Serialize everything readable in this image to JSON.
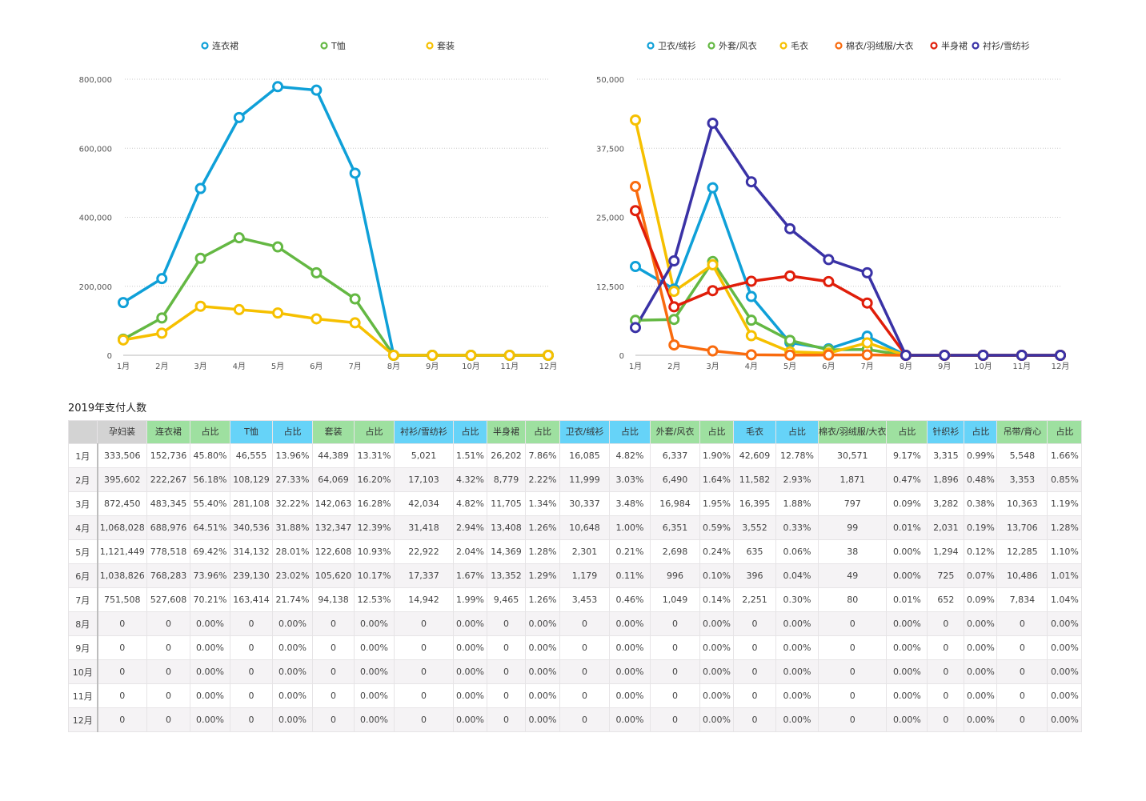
{
  "chart_data": [
    {
      "type": "line",
      "title": "",
      "xlabel": "",
      "ylabel": "",
      "x": [
        "1月",
        "2月",
        "3月",
        "4月",
        "5月",
        "6月",
        "7月",
        "8月",
        "9月",
        "10月",
        "11月",
        "12月"
      ],
      "ylim": [
        0,
        800000
      ],
      "yticks": [
        "0",
        "200,000",
        "400,000",
        "600,000",
        "800,000"
      ],
      "ytick_values": [
        0,
        200000,
        400000,
        600000,
        800000
      ],
      "grid": true,
      "legend_position": "top",
      "series": [
        {
          "name": "连衣裙",
          "color": "#0fa0d8",
          "values": [
            152736,
            222267,
            483345,
            688976,
            778518,
            768283,
            527608,
            0,
            0,
            0,
            0,
            0
          ]
        },
        {
          "name": "T恤",
          "color": "#64b843",
          "values": [
            46555,
            108129,
            281108,
            340536,
            314132,
            239130,
            163414,
            0,
            0,
            0,
            0,
            0
          ]
        },
        {
          "name": "套装",
          "color": "#f6c000",
          "values": [
            44389,
            64069,
            142063,
            132347,
            122608,
            105620,
            94138,
            0,
            0,
            0,
            0,
            0
          ]
        }
      ]
    },
    {
      "type": "line",
      "title": "",
      "xlabel": "",
      "ylabel": "",
      "x": [
        "1月",
        "2月",
        "3月",
        "4月",
        "5月",
        "6月",
        "7月",
        "8月",
        "9月",
        "10月",
        "11月",
        "12月"
      ],
      "ylim": [
        0,
        50000
      ],
      "yticks": [
        "0",
        "12,500",
        "25,000",
        "37,500",
        "50,000"
      ],
      "ytick_values": [
        0,
        12500,
        25000,
        37500,
        50000
      ],
      "grid": true,
      "legend_position": "top",
      "series": [
        {
          "name": "卫衣/绒衫",
          "color": "#0fa0d8",
          "values": [
            16085,
            11999,
            30337,
            10648,
            2301,
            1179,
            3453,
            0,
            0,
            0,
            0,
            0
          ]
        },
        {
          "name": "外套/风衣",
          "color": "#64b843",
          "values": [
            6337,
            6490,
            16984,
            6351,
            2698,
            996,
            1049,
            0,
            0,
            0,
            0,
            0
          ]
        },
        {
          "name": "毛衣",
          "color": "#f6c000",
          "values": [
            42609,
            11582,
            16395,
            3552,
            635,
            396,
            2251,
            0,
            0,
            0,
            0,
            0
          ]
        },
        {
          "name": "棉衣/羽绒服/大衣",
          "color": "#f96b0e",
          "values": [
            30571,
            1871,
            797,
            99,
            38,
            49,
            80,
            0,
            0,
            0,
            0,
            0
          ]
        },
        {
          "name": "半身裙",
          "color": "#e01e0a",
          "values": [
            26202,
            8779,
            11705,
            13408,
            14369,
            13352,
            9465,
            0,
            0,
            0,
            0,
            0
          ]
        },
        {
          "name": "衬衫/雪纺衫",
          "color": "#3a32a6",
          "values": [
            5021,
            17103,
            42034,
            31418,
            22922,
            17337,
            14942,
            0,
            0,
            0,
            0,
            0
          ]
        }
      ]
    }
  ],
  "table": {
    "title": "2019年支付人数",
    "headers": [
      {
        "label": "",
        "style": "gray"
      },
      {
        "label": "孕妇装",
        "style": "gray"
      },
      {
        "label": "连衣裙",
        "style": "green"
      },
      {
        "label": "占比",
        "style": "green"
      },
      {
        "label": "T恤",
        "style": "blue"
      },
      {
        "label": "占比",
        "style": "blue"
      },
      {
        "label": "套装",
        "style": "green"
      },
      {
        "label": "占比",
        "style": "green"
      },
      {
        "label": "衬衫/雪纺衫",
        "style": "blue"
      },
      {
        "label": "占比",
        "style": "blue"
      },
      {
        "label": "半身裙",
        "style": "green"
      },
      {
        "label": "占比",
        "style": "green"
      },
      {
        "label": "卫衣/绒衫",
        "style": "blue"
      },
      {
        "label": "占比",
        "style": "blue"
      },
      {
        "label": "外套/风衣",
        "style": "green"
      },
      {
        "label": "占比",
        "style": "green"
      },
      {
        "label": "毛衣",
        "style": "blue"
      },
      {
        "label": "占比",
        "style": "blue"
      },
      {
        "label": "棉衣/羽绒服/大衣",
        "style": "green"
      },
      {
        "label": "占比",
        "style": "green"
      },
      {
        "label": "针织衫",
        "style": "blue"
      },
      {
        "label": "占比",
        "style": "blue"
      },
      {
        "label": "吊带/背心",
        "style": "green"
      },
      {
        "label": "占比",
        "style": "green"
      }
    ],
    "rows": [
      [
        "1月",
        "333,506",
        "152,736",
        "45.80%",
        "46,555",
        "13.96%",
        "44,389",
        "13.31%",
        "5,021",
        "1.51%",
        "26,202",
        "7.86%",
        "16,085",
        "4.82%",
        "6,337",
        "1.90%",
        "42,609",
        "12.78%",
        "30,571",
        "9.17%",
        "3,315",
        "0.99%",
        "5,548",
        "1.66%"
      ],
      [
        "2月",
        "395,602",
        "222,267",
        "56.18%",
        "108,129",
        "27.33%",
        "64,069",
        "16.20%",
        "17,103",
        "4.32%",
        "8,779",
        "2.22%",
        "11,999",
        "3.03%",
        "6,490",
        "1.64%",
        "11,582",
        "2.93%",
        "1,871",
        "0.47%",
        "1,896",
        "0.48%",
        "3,353",
        "0.85%"
      ],
      [
        "3月",
        "872,450",
        "483,345",
        "55.40%",
        "281,108",
        "32.22%",
        "142,063",
        "16.28%",
        "42,034",
        "4.82%",
        "11,705",
        "1.34%",
        "30,337",
        "3.48%",
        "16,984",
        "1.95%",
        "16,395",
        "1.88%",
        "797",
        "0.09%",
        "3,282",
        "0.38%",
        "10,363",
        "1.19%"
      ],
      [
        "4月",
        "1,068,028",
        "688,976",
        "64.51%",
        "340,536",
        "31.88%",
        "132,347",
        "12.39%",
        "31,418",
        "2.94%",
        "13,408",
        "1.26%",
        "10,648",
        "1.00%",
        "6,351",
        "0.59%",
        "3,552",
        "0.33%",
        "99",
        "0.01%",
        "2,031",
        "0.19%",
        "13,706",
        "1.28%"
      ],
      [
        "5月",
        "1,121,449",
        "778,518",
        "69.42%",
        "314,132",
        "28.01%",
        "122,608",
        "10.93%",
        "22,922",
        "2.04%",
        "14,369",
        "1.28%",
        "2,301",
        "0.21%",
        "2,698",
        "0.24%",
        "635",
        "0.06%",
        "38",
        "0.00%",
        "1,294",
        "0.12%",
        "12,285",
        "1.10%"
      ],
      [
        "6月",
        "1,038,826",
        "768,283",
        "73.96%",
        "239,130",
        "23.02%",
        "105,620",
        "10.17%",
        "17,337",
        "1.67%",
        "13,352",
        "1.29%",
        "1,179",
        "0.11%",
        "996",
        "0.10%",
        "396",
        "0.04%",
        "49",
        "0.00%",
        "725",
        "0.07%",
        "10,486",
        "1.01%"
      ],
      [
        "7月",
        "751,508",
        "527,608",
        "70.21%",
        "163,414",
        "21.74%",
        "94,138",
        "12.53%",
        "14,942",
        "1.99%",
        "9,465",
        "1.26%",
        "3,453",
        "0.46%",
        "1,049",
        "0.14%",
        "2,251",
        "0.30%",
        "80",
        "0.01%",
        "652",
        "0.09%",
        "7,834",
        "1.04%"
      ],
      [
        "8月",
        "0",
        "0",
        "0.00%",
        "0",
        "0.00%",
        "0",
        "0.00%",
        "0",
        "0.00%",
        "0",
        "0.00%",
        "0",
        "0.00%",
        "0",
        "0.00%",
        "0",
        "0.00%",
        "0",
        "0.00%",
        "0",
        "0.00%",
        "0",
        "0.00%"
      ],
      [
        "9月",
        "0",
        "0",
        "0.00%",
        "0",
        "0.00%",
        "0",
        "0.00%",
        "0",
        "0.00%",
        "0",
        "0.00%",
        "0",
        "0.00%",
        "0",
        "0.00%",
        "0",
        "0.00%",
        "0",
        "0.00%",
        "0",
        "0.00%",
        "0",
        "0.00%"
      ],
      [
        "10月",
        "0",
        "0",
        "0.00%",
        "0",
        "0.00%",
        "0",
        "0.00%",
        "0",
        "0.00%",
        "0",
        "0.00%",
        "0",
        "0.00%",
        "0",
        "0.00%",
        "0",
        "0.00%",
        "0",
        "0.00%",
        "0",
        "0.00%",
        "0",
        "0.00%"
      ],
      [
        "11月",
        "0",
        "0",
        "0.00%",
        "0",
        "0.00%",
        "0",
        "0.00%",
        "0",
        "0.00%",
        "0",
        "0.00%",
        "0",
        "0.00%",
        "0",
        "0.00%",
        "0",
        "0.00%",
        "0",
        "0.00%",
        "0",
        "0.00%",
        "0",
        "0.00%"
      ],
      [
        "12月",
        "0",
        "0",
        "0.00%",
        "0",
        "0.00%",
        "0",
        "0.00%",
        "0",
        "0.00%",
        "0",
        "0.00%",
        "0",
        "0.00%",
        "0",
        "0.00%",
        "0",
        "0.00%",
        "0",
        "0.00%",
        "0",
        "0.00%",
        "0",
        "0.00%"
      ]
    ]
  }
}
